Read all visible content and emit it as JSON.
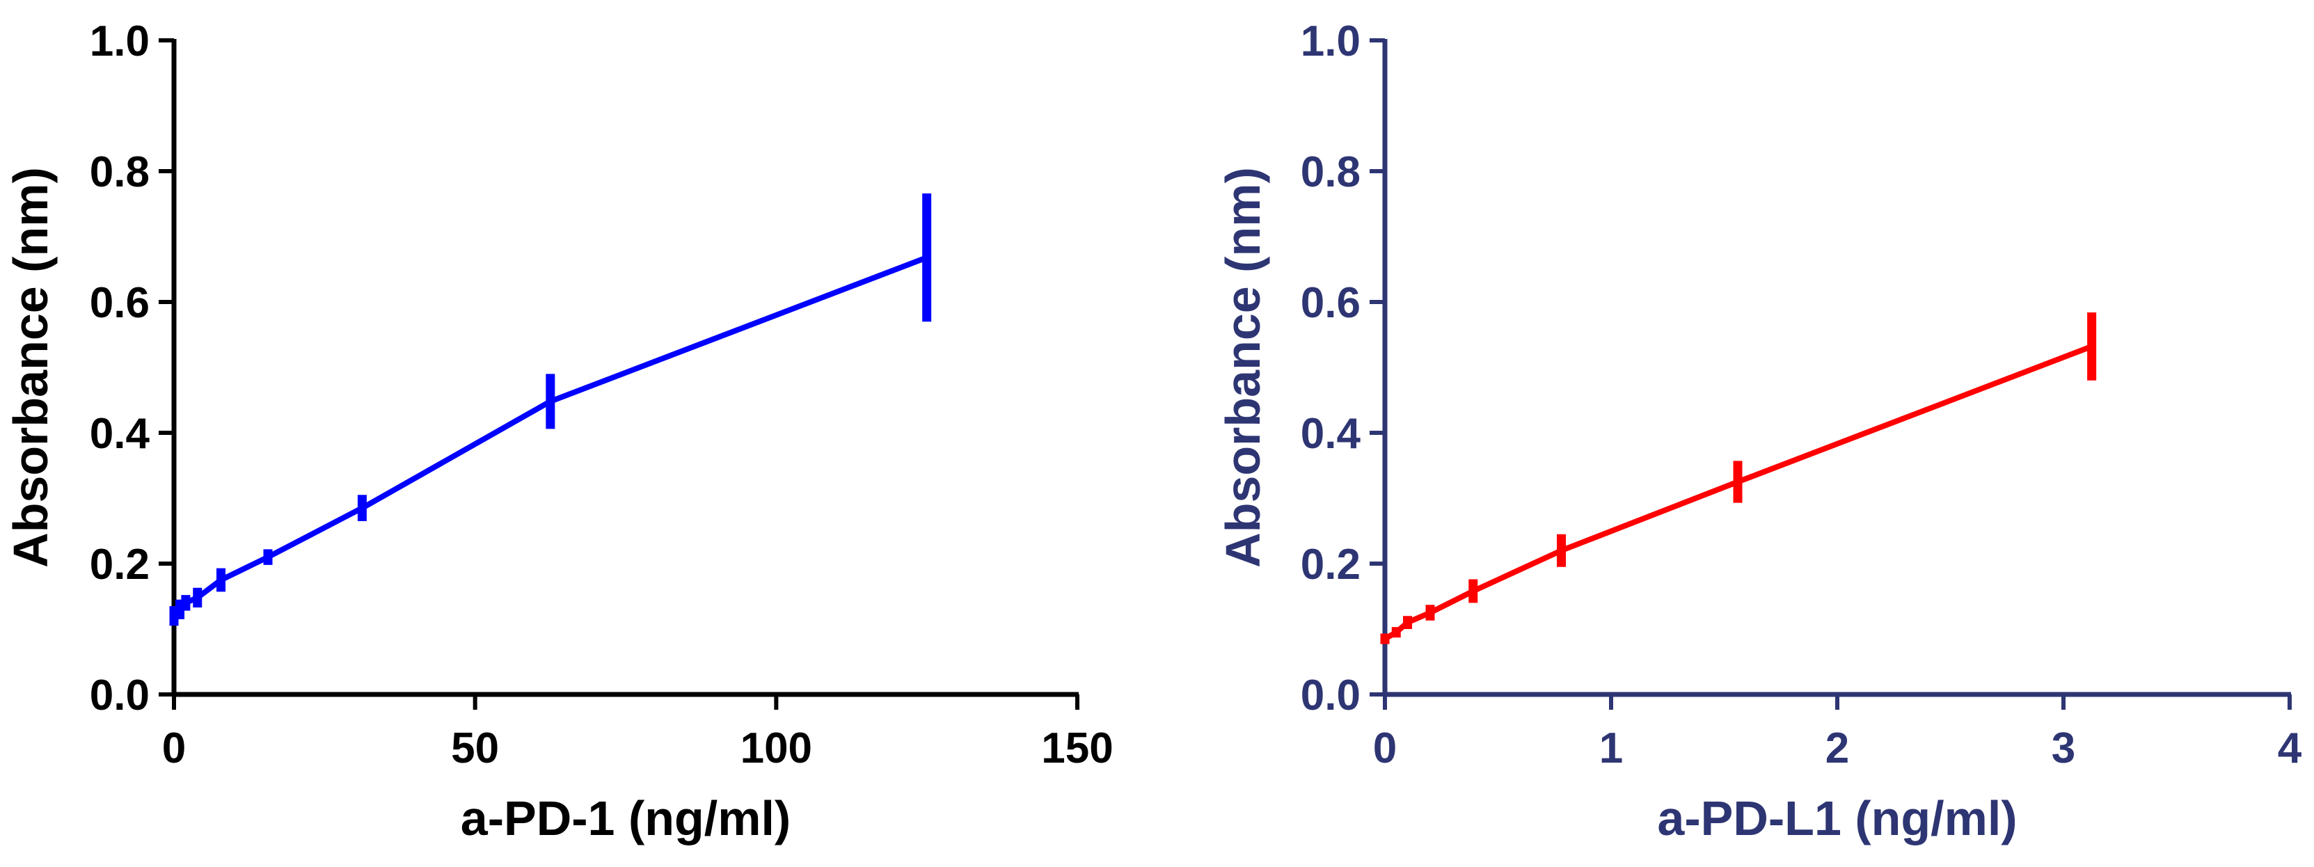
{
  "chart_data": [
    {
      "type": "line",
      "title": "",
      "xlabel": "a-PD-1 (ng/ml)",
      "ylabel": "Absorbance (nm)",
      "xlim": [
        0,
        150
      ],
      "ylim": [
        0,
        1.0
      ],
      "xticks": [
        0,
        50,
        100,
        150
      ],
      "xtick_labels": [
        "0",
        "50",
        "100",
        "150"
      ],
      "yticks": [
        0,
        0.2,
        0.4,
        0.6,
        0.8,
        1.0
      ],
      "ytick_labels": [
        "0.0",
        "0.2",
        "0.4",
        "0.6",
        "0.8",
        "1.0"
      ],
      "axis_color": "#000000",
      "grid": false,
      "series": [
        {
          "name": "a-PD-1",
          "color": "#0000ff",
          "x": [
            0,
            0.98,
            1.95,
            3.9,
            7.8,
            15.6,
            31.25,
            62.5,
            125
          ],
          "y": [
            0.12,
            0.13,
            0.14,
            0.148,
            0.175,
            0.21,
            0.285,
            0.448,
            0.668
          ],
          "err": [
            0.015,
            0.015,
            0.012,
            0.015,
            0.018,
            0.012,
            0.02,
            0.042,
            0.098
          ]
        }
      ]
    },
    {
      "type": "line",
      "title": "",
      "xlabel": "a-PD-L1 (ng/ml)",
      "ylabel": "Absorbance (nm)",
      "xlim": [
        0,
        4
      ],
      "ylim": [
        0,
        1.0
      ],
      "xticks": [
        0,
        1,
        2,
        3,
        4
      ],
      "xtick_labels": [
        "0",
        "1",
        "2",
        "3",
        "4"
      ],
      "yticks": [
        0,
        0.2,
        0.4,
        0.6,
        0.8,
        1.0
      ],
      "ytick_labels": [
        "0.0",
        "0.2",
        "0.4",
        "0.6",
        "0.8",
        "1.0"
      ],
      "axis_color": "#2e3573",
      "grid": false,
      "series": [
        {
          "name": "a-PD-L1",
          "color": "#ff0000",
          "x": [
            0,
            0.05,
            0.1,
            0.2,
            0.39,
            0.78,
            1.56,
            3.125
          ],
          "y": [
            0.085,
            0.095,
            0.11,
            0.125,
            0.158,
            0.22,
            0.325,
            0.532
          ],
          "err": [
            0.008,
            0.008,
            0.01,
            0.012,
            0.018,
            0.025,
            0.032,
            0.052
          ]
        }
      ]
    }
  ]
}
